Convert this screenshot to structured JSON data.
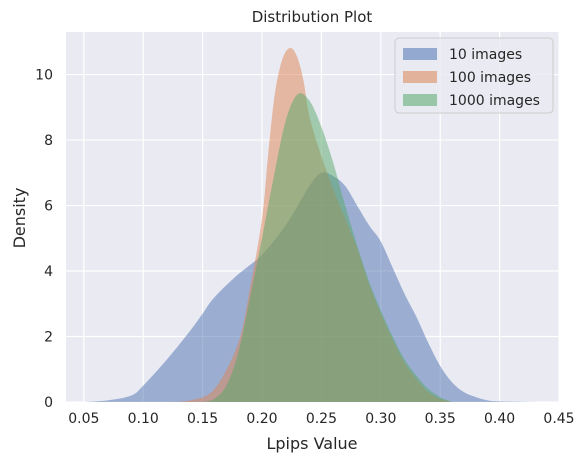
{
  "chart_data": {
    "type": "area",
    "title": "Distribution Plot",
    "xlabel": "Lpips Value",
    "ylabel": "Density",
    "xlim": [
      0.035,
      0.45
    ],
    "ylim": [
      0,
      11.3
    ],
    "x_ticks": [
      0.05,
      0.1,
      0.15,
      0.2,
      0.25,
      0.3,
      0.35,
      0.4,
      0.45
    ],
    "x_tick_labels": [
      "0.05",
      "0.10",
      "0.15",
      "0.20",
      "0.25",
      "0.30",
      "0.35",
      "0.40",
      "0.45"
    ],
    "y_ticks": [
      0,
      2,
      4,
      6,
      8,
      10
    ],
    "y_tick_labels": [
      "0",
      "2",
      "4",
      "6",
      "8",
      "10"
    ],
    "grid": true,
    "legend_position": "top-right",
    "series": [
      {
        "name": "10 images",
        "color": "#4c72b0",
        "x": [
          0.05,
          0.07,
          0.09,
          0.1,
          0.12,
          0.14,
          0.15,
          0.16,
          0.18,
          0.2,
          0.22,
          0.24,
          0.25,
          0.26,
          0.27,
          0.28,
          0.29,
          0.3,
          0.31,
          0.32,
          0.33,
          0.34,
          0.35,
          0.36,
          0.37,
          0.38,
          0.39,
          0.4,
          0.43
        ],
        "values": [
          0.0,
          0.05,
          0.2,
          0.5,
          1.3,
          2.2,
          2.7,
          3.2,
          3.9,
          4.5,
          5.4,
          6.6,
          7.0,
          6.9,
          6.6,
          6.0,
          5.4,
          4.9,
          4.1,
          3.3,
          2.6,
          1.8,
          1.1,
          0.6,
          0.3,
          0.15,
          0.05,
          0.02,
          0.0
        ]
      },
      {
        "name": "100 images",
        "color": "#dd8452",
        "x": [
          0.12,
          0.14,
          0.16,
          0.18,
          0.19,
          0.2,
          0.205,
          0.21,
          0.215,
          0.22,
          0.225,
          0.23,
          0.235,
          0.24,
          0.25,
          0.26,
          0.27,
          0.28,
          0.29,
          0.3,
          0.31,
          0.32,
          0.33,
          0.34,
          0.35,
          0.36
        ],
        "values": [
          0.0,
          0.05,
          0.4,
          1.8,
          3.5,
          5.6,
          7.5,
          9.2,
          10.2,
          10.7,
          10.8,
          10.5,
          9.8,
          8.7,
          7.5,
          6.5,
          5.6,
          4.7,
          3.6,
          2.7,
          1.9,
          1.2,
          0.7,
          0.3,
          0.1,
          0.0
        ]
      },
      {
        "name": "1000 images",
        "color": "#55a868",
        "x": [
          0.15,
          0.16,
          0.17,
          0.18,
          0.19,
          0.2,
          0.21,
          0.22,
          0.23,
          0.24,
          0.25,
          0.26,
          0.27,
          0.28,
          0.29,
          0.3,
          0.31,
          0.32,
          0.33,
          0.34,
          0.35,
          0.36
        ],
        "values": [
          0.0,
          0.1,
          0.5,
          1.5,
          3.2,
          5.0,
          6.9,
          8.6,
          9.4,
          9.2,
          8.4,
          7.3,
          6.0,
          4.8,
          3.7,
          2.8,
          2.0,
          1.3,
          0.8,
          0.4,
          0.15,
          0.0
        ]
      }
    ]
  }
}
